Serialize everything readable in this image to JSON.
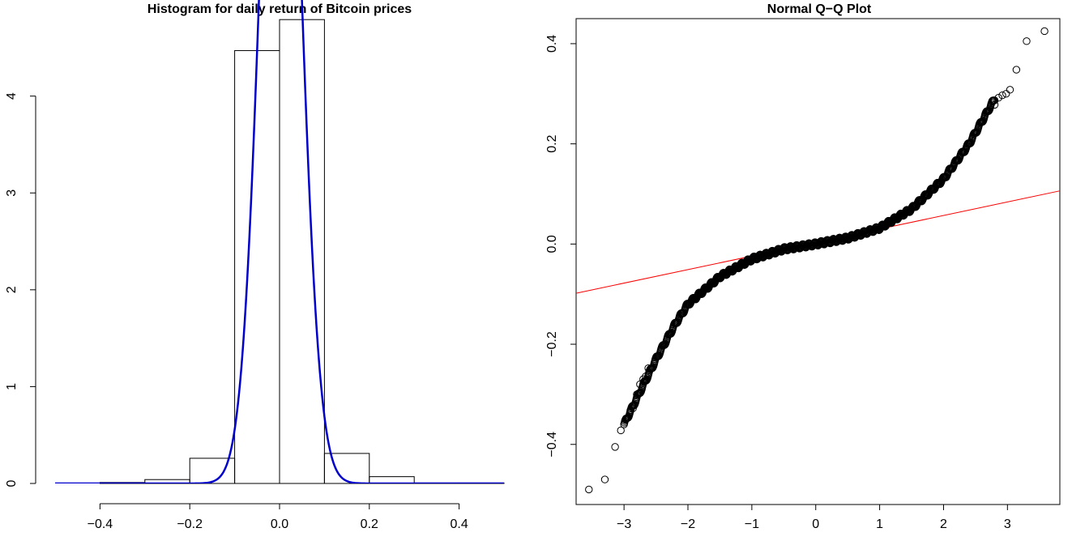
{
  "chart_data": [
    {
      "type": "bar",
      "title": "Histogram for daily return of Bitcoin prices",
      "bins": [
        {
          "x0": -0.4,
          "x1": -0.3,
          "density": 0.01
        },
        {
          "x0": -0.3,
          "x1": -0.2,
          "density": 0.04
        },
        {
          "x0": -0.2,
          "x1": -0.1,
          "density": 0.26
        },
        {
          "x0": -0.1,
          "x1": 0.0,
          "density": 4.47
        },
        {
          "x0": 0.0,
          "x1": 0.1,
          "density": 4.79
        },
        {
          "x0": 0.1,
          "x1": 0.2,
          "density": 0.31
        },
        {
          "x0": 0.2,
          "x1": 0.3,
          "density": 0.07
        },
        {
          "x0": 0.3,
          "x1": 0.4,
          "density": 0.005
        },
        {
          "x0": 0.4,
          "x1": 0.5,
          "density": 0.005
        }
      ],
      "density_curve": {
        "color": "#0000cc",
        "mean": 0.002,
        "sd": 0.043
      },
      "xlim": [
        -0.5,
        0.5
      ],
      "ylim": [
        0,
        4.8
      ],
      "xticks": [
        "-0.4",
        "-0.2",
        "0.0",
        "0.2",
        "0.4"
      ],
      "yticks": [
        "0",
        "1",
        "2",
        "3",
        "4"
      ],
      "xlabel": "",
      "ylabel": ""
    },
    {
      "type": "scatter",
      "title": "Normal Q−Q Plot",
      "xlim": [
        -3.75,
        3.82
      ],
      "ylim": [
        -0.52,
        0.45
      ],
      "xticks": [
        "−3",
        "−2",
        "−1",
        "0",
        "1",
        "2",
        "3"
      ],
      "yticks": [
        "−0.4",
        "−0.2",
        "0.0",
        "0.2",
        "0.4"
      ],
      "reference_line": {
        "color": "#ff0000",
        "intercept": 0.003,
        "slope": 0.027
      },
      "sample_curve": {
        "x": [
          -3.0,
          -2.5,
          -2.2,
          -2.0,
          -1.5,
          -1.0,
          -0.5,
          0.0,
          0.5,
          1.0,
          1.5,
          2.0,
          2.4,
          2.8
        ],
        "y": [
          -0.36,
          -0.23,
          -0.16,
          -0.12,
          -0.065,
          -0.03,
          -0.01,
          0.0,
          0.012,
          0.032,
          0.07,
          0.13,
          0.2,
          0.29
        ]
      },
      "outliers": [
        {
          "x": -3.55,
          "y": -0.49
        },
        {
          "x": -3.3,
          "y": -0.47
        },
        {
          "x": -3.14,
          "y": -0.405
        },
        {
          "x": -3.05,
          "y": -0.372
        },
        {
          "x": -2.97,
          "y": -0.35
        },
        {
          "x": -2.9,
          "y": -0.332
        },
        {
          "x": -2.86,
          "y": -0.328
        },
        {
          "x": -2.8,
          "y": -0.3
        },
        {
          "x": -2.75,
          "y": -0.28
        },
        {
          "x": -2.7,
          "y": -0.27
        },
        {
          "x": -2.66,
          "y": -0.264
        },
        {
          "x": -2.62,
          "y": -0.248
        },
        {
          "x": 2.8,
          "y": 0.278
        },
        {
          "x": 2.86,
          "y": 0.292
        },
        {
          "x": 2.92,
          "y": 0.297
        },
        {
          "x": 2.98,
          "y": 0.3
        },
        {
          "x": 3.04,
          "y": 0.308
        },
        {
          "x": 3.14,
          "y": 0.348
        },
        {
          "x": 3.3,
          "y": 0.405
        },
        {
          "x": 3.58,
          "y": 0.425
        }
      ],
      "xlabel": "",
      "ylabel": ""
    }
  ]
}
